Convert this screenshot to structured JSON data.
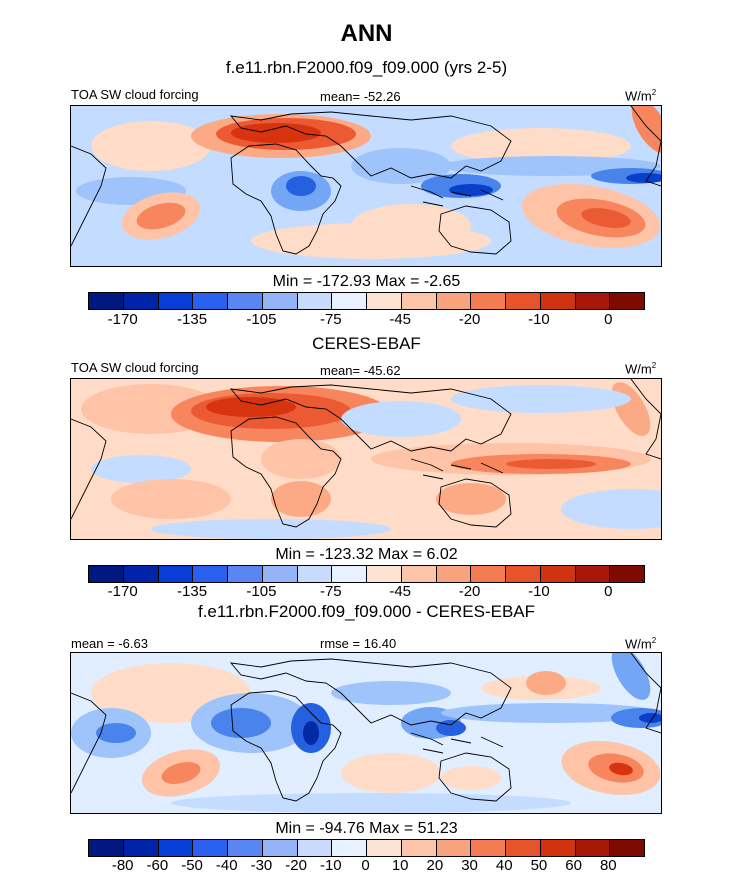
{
  "title": "ANN",
  "colors": {
    "pos_ramp": [
      "#e0eeff",
      "#ffdcc7",
      "#ffc3a8",
      "#fcaa86",
      "#f7855e",
      "#ec5a34",
      "#d8330f",
      "#b41c0a",
      "#851003"
    ],
    "neg_ramp": [
      "#e0eeff",
      "#c3dcff",
      "#9ec4fb",
      "#73a6f5",
      "#4984ec",
      "#2460e0",
      "#0a3fc9",
      "#032aa3",
      "#001a80"
    ],
    "land_outline": "#000000"
  },
  "chart_data": [
    {
      "type": "heatmap",
      "panel": "model",
      "title": "f.e11.rbn.F2000.f09_f09.000 (yrs 2-5)",
      "left_label": "TOA SW cloud forcing",
      "center_label": "mean= -52.26",
      "units": "W/m",
      "units_sup": "2",
      "stats": "Min = -172.93 Max =  -2.65",
      "min": -172.93,
      "max": -2.65,
      "mean": -52.26,
      "colorbar": {
        "colors": [
          "#00187f",
          "#0024a8",
          "#0a3dd6",
          "#2a5ff0",
          "#5a86f2",
          "#94b4f7",
          "#c8dbfc",
          "#e8f1ff",
          "#fde3d3",
          "#fcc5aa",
          "#f9a27e",
          "#f47c52",
          "#e85429",
          "#cf3310",
          "#a8180a",
          "#7e0a02"
        ],
        "tick_labels": [
          "-170",
          "-135",
          "-105",
          "-75",
          "-45",
          "-20",
          "-10",
          "0"
        ]
      }
    },
    {
      "type": "heatmap",
      "panel": "obs",
      "title": "CERES-EBAF",
      "left_label": "TOA SW cloud forcing",
      "center_label": "mean= -45.62",
      "units": "W/m",
      "units_sup": "2",
      "stats": "Min = -123.32 Max =   6.02",
      "min": -123.32,
      "max": 6.02,
      "mean": -45.62,
      "colorbar": {
        "colors": [
          "#00187f",
          "#0024a8",
          "#0a3dd6",
          "#2a5ff0",
          "#5a86f2",
          "#94b4f7",
          "#c8dbfc",
          "#e8f1ff",
          "#fde3d3",
          "#fcc5aa",
          "#f9a27e",
          "#f47c52",
          "#e85429",
          "#cf3310",
          "#a8180a",
          "#7e0a02"
        ],
        "tick_labels": [
          "-170",
          "-135",
          "-105",
          "-75",
          "-45",
          "-20",
          "-10",
          "0"
        ]
      }
    },
    {
      "type": "heatmap",
      "panel": "diff",
      "title": "f.e11.rbn.F2000.f09_f09.000 - CERES-EBAF",
      "left_label": "mean =  -6.63",
      "center_label": "rmse =  16.40",
      "units": "W/m",
      "units_sup": "2",
      "stats": "Min = -94.76 Max =  51.23",
      "min": -94.76,
      "max": 51.23,
      "mean": -6.63,
      "rmse": 16.4,
      "colorbar": {
        "colors": [
          "#00187f",
          "#0024a8",
          "#0a3dd6",
          "#2a5ff0",
          "#5a86f2",
          "#94b4f7",
          "#c8dbfc",
          "#e8f1ff",
          "#fde3d3",
          "#fcc5aa",
          "#f9a27e",
          "#f47c52",
          "#e85429",
          "#cf3310",
          "#a8180a",
          "#7e0a02"
        ],
        "tick_labels": [
          "-80",
          "-60",
          "-50",
          "-40",
          "-30",
          "-20",
          "-10",
          "0",
          "10",
          "20",
          "30",
          "40",
          "50",
          "60",
          "80"
        ]
      }
    }
  ]
}
